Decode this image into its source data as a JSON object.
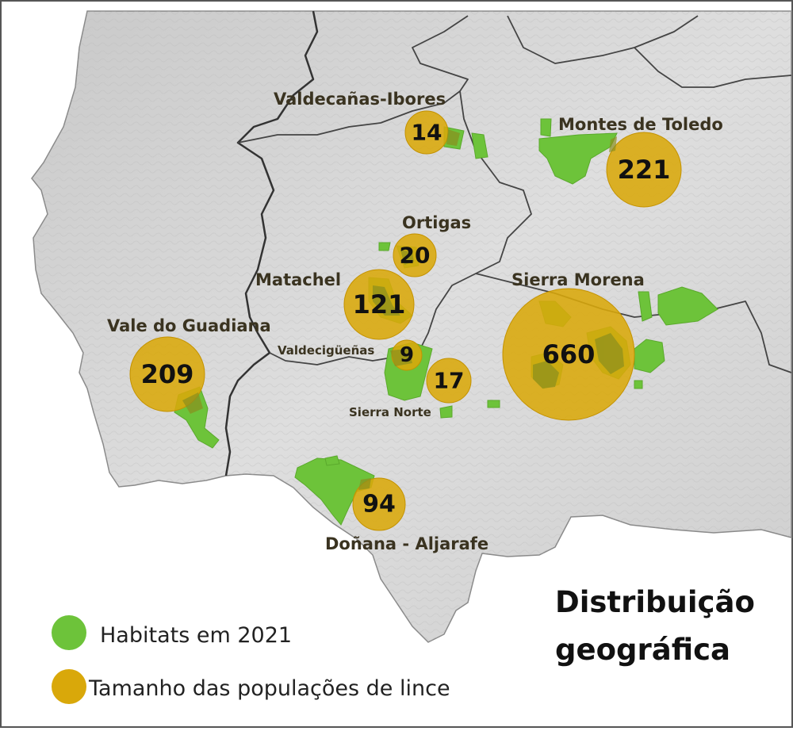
{
  "title": {
    "line1": "Distribuição",
    "line2": "geográfica"
  },
  "legend": {
    "habitats": "Habitats em 2021",
    "populations": "Tamanho das populações de lince"
  },
  "colors": {
    "habitat": "#6dc33a",
    "population": "#d9a80a",
    "land": "#d4d4d4",
    "sea": "#ffffff",
    "border": "#333333"
  },
  "regions": [
    {
      "name": "Valdecañas-Ibores",
      "population": "14"
    },
    {
      "name": "Montes de Toledo",
      "population": "221"
    },
    {
      "name": "Ortigas",
      "population": "20"
    },
    {
      "name": "Matachel",
      "population": "121"
    },
    {
      "name": "Sierra Morena",
      "population": "660"
    },
    {
      "name": "Vale do Guadiana",
      "population": "209"
    },
    {
      "name": "Valdecigüeñas",
      "population": "9"
    },
    {
      "name": "Sierra Norte",
      "population": "17"
    },
    {
      "name": "Doñana - Aljarafe",
      "population": "94"
    }
  ]
}
